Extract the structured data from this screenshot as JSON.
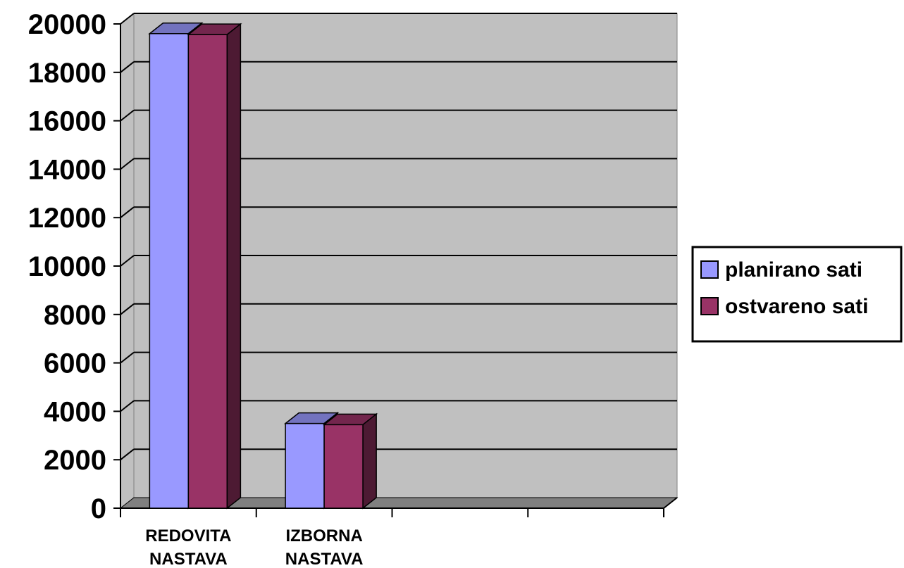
{
  "chart_data": {
    "type": "bar",
    "style": "3d-clustered-column",
    "categories": [
      [
        "REDOVITA",
        "NASTAVA"
      ],
      [
        "IZBORNA",
        "NASTAVA"
      ],
      [
        ""
      ],
      [
        ""
      ]
    ],
    "series": [
      {
        "name": "planirano sati",
        "values": [
          19600,
          3500,
          null,
          null
        ],
        "color": "#9999ff"
      },
      {
        "name": "ostvareno sati",
        "values": [
          19560,
          3450,
          null,
          null
        ],
        "color": "#993366"
      }
    ],
    "ylim": [
      0,
      20000
    ],
    "yticks": [
      0,
      2000,
      4000,
      6000,
      8000,
      10000,
      12000,
      14000,
      16000,
      18000,
      20000
    ],
    "title": "",
    "xlabel": "",
    "ylabel": "",
    "grid": true,
    "legend_position": "right",
    "colors": {
      "wall": "#c0c0c0",
      "floor": "#808080",
      "gridline": "#000000"
    }
  }
}
